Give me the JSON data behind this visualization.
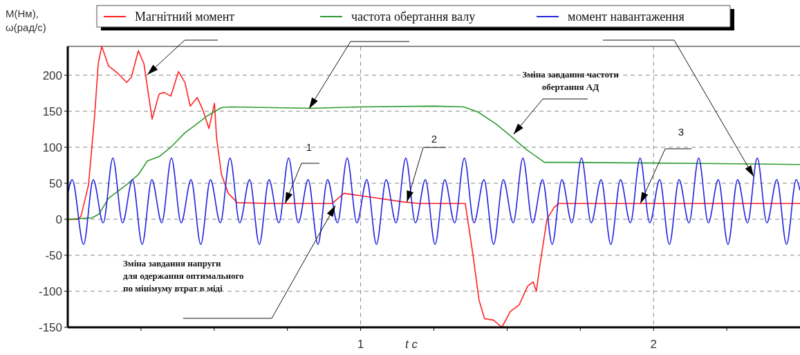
{
  "chart_data": {
    "type": "line",
    "ylabel": "М(Нм),\nω(рад/с)",
    "xlabel": "t c",
    "xlim": [
      0,
      2.5
    ],
    "ylim": [
      -150,
      240
    ],
    "xticks": [
      {
        "value": 0.25,
        "label": null
      },
      {
        "value": 0.5,
        "label": null
      },
      {
        "value": 0.75,
        "label": null
      },
      1,
      {
        "value": 1.25,
        "label": null
      },
      {
        "value": 1.5,
        "label": null
      },
      {
        "value": 1.75,
        "label": null
      },
      2,
      {
        "value": 2.25,
        "label": null
      }
    ],
    "yticks": [
      -150,
      -100,
      -50,
      0,
      50,
      100,
      150,
      200
    ],
    "grid": true,
    "legend": "top",
    "line_style": "solid",
    "marker": "none",
    "series": [
      {
        "name": "Магнітний момент",
        "color": "#ff2020",
        "x": [
          0,
          0.035,
          0.045,
          0.071,
          0.092,
          0.104,
          0.116,
          0.139,
          0.17,
          0.201,
          0.217,
          0.241,
          0.26,
          0.288,
          0.312,
          0.329,
          0.352,
          0.378,
          0.4,
          0.418,
          0.442,
          0.461,
          0.482,
          0.501,
          0.508,
          0.525,
          0.548,
          0.579,
          0.7,
          0.903,
          0.943,
          1.028,
          1.147,
          1.2,
          1.357,
          1.383,
          1.404,
          1.423,
          1.454,
          1.482,
          1.511,
          1.541,
          1.57,
          1.589,
          1.6,
          1.612,
          1.636,
          1.66,
          1.676,
          2.0,
          2.5
        ],
        "values": [
          0,
          0,
          4,
          48,
          145,
          216,
          240,
          213,
          203,
          190,
          197,
          234,
          216,
          139,
          174,
          176,
          171,
          205,
          190,
          157,
          169,
          152,
          126,
          161,
          113,
          62,
          36,
          23,
          22,
          22,
          36,
          31,
          24,
          22,
          22,
          -48,
          -112,
          -138,
          -140,
          -150,
          -128,
          -119,
          -93,
          -87,
          -100,
          -64,
          0,
          16,
          22,
          22,
          22
        ]
      },
      {
        "name": "частота обертання валу",
        "color": "#2e9a2e",
        "x": [
          0,
          0.083,
          0.106,
          0.139,
          0.201,
          0.241,
          0.272,
          0.312,
          0.352,
          0.4,
          0.437,
          0.478,
          0.525,
          0.556,
          0.7,
          0.832,
          1.0,
          1.25,
          1.352,
          1.4,
          1.463,
          1.511,
          1.565,
          1.628,
          1.7,
          2.0,
          2.3,
          2.5
        ],
        "values": [
          0,
          2,
          7,
          29,
          48,
          62,
          81,
          87,
          100,
          120,
          131,
          144,
          155,
          156,
          155,
          154,
          156,
          157,
          156,
          149,
          132,
          116,
          97,
          79,
          79,
          78,
          77,
          76
        ]
      },
      {
        "name": "момент навантаження",
        "color": "#2323e0",
        "x": [
          0,
          0.015,
          0.054,
          0.087,
          0.121,
          0.154,
          0.187,
          0.221,
          0.254,
          0.287,
          0.321,
          0.354,
          0.387,
          0.421,
          0.454,
          0.487,
          0.521,
          0.554,
          0.587,
          0.621,
          0.654,
          0.687,
          0.721,
          0.754,
          0.787,
          0.821,
          0.854,
          0.887,
          0.921,
          0.954,
          0.987,
          1.021,
          1.054,
          1.087,
          1.121,
          1.154,
          1.187,
          1.221,
          1.254,
          1.287,
          1.321,
          1.354,
          1.387,
          1.421,
          1.454,
          1.487,
          1.521,
          1.554,
          1.587,
          1.621,
          1.654,
          1.687,
          1.721,
          1.754,
          1.787,
          1.821,
          1.854,
          1.887,
          1.921,
          1.954,
          1.987,
          2.021,
          2.054,
          2.087,
          2.121,
          2.154,
          2.187,
          2.221,
          2.254,
          2.287,
          2.321,
          2.354,
          2.387,
          2.421,
          2.454,
          2.487,
          2.5
        ],
        "values": [
          35,
          55,
          -35,
          55,
          -5,
          85,
          -5,
          55,
          -35,
          55,
          -5,
          85,
          -5,
          55,
          -35,
          55,
          -5,
          85,
          -5,
          55,
          -35,
          55,
          -5,
          85,
          -5,
          55,
          -35,
          55,
          -5,
          85,
          -5,
          55,
          -35,
          55,
          -5,
          85,
          -5,
          55,
          -35,
          55,
          -5,
          85,
          -5,
          55,
          -35,
          55,
          -5,
          85,
          -5,
          55,
          -35,
          55,
          -5,
          85,
          -5,
          55,
          -35,
          55,
          -5,
          85,
          -5,
          55,
          -35,
          55,
          -5,
          85,
          -5,
          55,
          -35,
          55,
          -5,
          85,
          -5,
          55,
          -35,
          55,
          40
        ]
      }
    ],
    "annotations": [
      "Зміна завдання напруги\nдля одержання оптимального\nпо мінімуму втрат в міді",
      {
        "text": "Зміна завдання частоти\nобертання АД",
        "x": 1.522,
        "y": 118
      },
      {
        "text": "1",
        "x": 0.742,
        "y": 22
      },
      {
        "text": "2",
        "x": 1.158,
        "y": 24
      },
      {
        "text": "3",
        "x": 1.955,
        "y": 22
      }
    ]
  }
}
